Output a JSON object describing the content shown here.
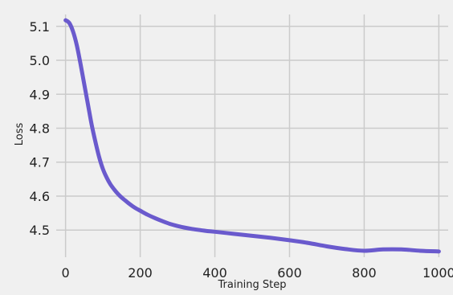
{
  "chart_data": {
    "type": "line",
    "title": "",
    "xlabel": "Training Step",
    "ylabel": "Loss",
    "xlim": [
      -25,
      1025
    ],
    "ylim": [
      4.42,
      5.135
    ],
    "xticks": [
      0,
      200,
      400,
      600,
      800,
      1000
    ],
    "yticks": [
      4.5,
      4.6,
      4.7,
      4.8,
      4.9,
      5.0,
      5.1
    ],
    "grid": true,
    "background": "#f0f0f0",
    "grid_color": "#cbcbcb",
    "series": [
      {
        "color": "#6a5acd",
        "x": [
          0,
          10,
          20,
          30,
          40,
          50,
          60,
          70,
          80,
          90,
          100,
          110,
          120,
          130,
          140,
          150,
          160,
          170,
          180,
          190,
          200,
          220,
          240,
          260,
          280,
          300,
          320,
          340,
          360,
          380,
          400,
          450,
          500,
          550,
          600,
          650,
          700,
          750,
          800,
          850,
          900,
          950,
          1000
        ],
        "y": [
          5.118,
          5.11,
          5.085,
          5.045,
          4.99,
          4.93,
          4.87,
          4.81,
          4.76,
          4.715,
          4.68,
          4.655,
          4.635,
          4.62,
          4.607,
          4.596,
          4.587,
          4.578,
          4.57,
          4.563,
          4.557,
          4.545,
          4.535,
          4.526,
          4.518,
          4.512,
          4.507,
          4.503,
          4.5,
          4.497,
          4.495,
          4.489,
          4.483,
          4.477,
          4.47,
          4.462,
          4.452,
          4.444,
          4.439,
          4.443,
          4.443,
          4.439,
          4.437
        ]
      }
    ]
  }
}
